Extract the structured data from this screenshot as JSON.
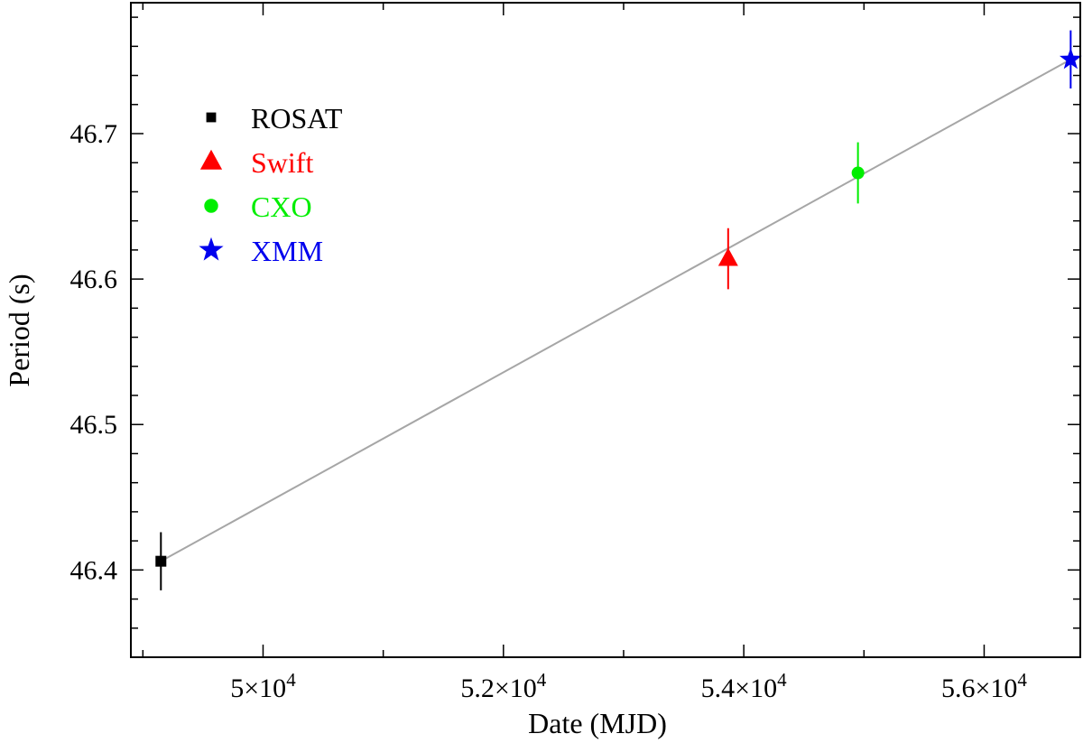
{
  "chart_data": {
    "type": "scatter",
    "xlabel": "Date (MJD)",
    "ylabel": "Period (s)",
    "xlim": [
      48900,
      56800
    ],
    "ylim": [
      46.34,
      46.79
    ],
    "x_major_ticks": [
      {
        "value": 50000,
        "label": "5×10",
        "exp": "4"
      },
      {
        "value": 52000,
        "label": "5.2×10",
        "exp": "4"
      },
      {
        "value": 54000,
        "label": "5.4×10",
        "exp": "4"
      },
      {
        "value": 56000,
        "label": "5.6×10",
        "exp": "4"
      }
    ],
    "x_minor_ticks": [
      49000,
      51000,
      53000,
      55000
    ],
    "y_major_ticks": [
      {
        "value": 46.4,
        "label": "46.4"
      },
      {
        "value": 46.5,
        "label": "46.5"
      },
      {
        "value": 46.6,
        "label": "46.6"
      },
      {
        "value": 46.7,
        "label": "46.7"
      }
    ],
    "y_minor_step": 0.02,
    "fit_line": {
      "x": [
        49150,
        56720
      ],
      "y": [
        46.406,
        46.751
      ],
      "color": "#a6a6a6"
    },
    "series": [
      {
        "name": "ROSAT",
        "marker": "square",
        "color": "#000000",
        "points": [
          {
            "x": 49150,
            "y": 46.406,
            "yerr": 0.02
          }
        ]
      },
      {
        "name": "Swift",
        "marker": "triangle",
        "color": "#ff0000",
        "points": [
          {
            "x": 53870,
            "y": 46.614,
            "yerr": 0.021
          }
        ]
      },
      {
        "name": "CXO",
        "marker": "circle",
        "color": "#00ee00",
        "points": [
          {
            "x": 54950,
            "y": 46.673,
            "yerr": 0.021
          }
        ]
      },
      {
        "name": "XMM",
        "marker": "star",
        "color": "#0000ee",
        "points": [
          {
            "x": 56720,
            "y": 46.751,
            "yerr": 0.02
          }
        ]
      }
    ],
    "legend": {
      "position": "top-left",
      "entries": [
        {
          "label": "ROSAT",
          "marker": "square",
          "color": "#000000"
        },
        {
          "label": "Swift",
          "marker": "triangle",
          "color": "#ff0000"
        },
        {
          "label": "CXO",
          "marker": "circle",
          "color": "#00ee00"
        },
        {
          "label": "XMM",
          "marker": "star",
          "color": "#0000ee"
        }
      ]
    }
  }
}
